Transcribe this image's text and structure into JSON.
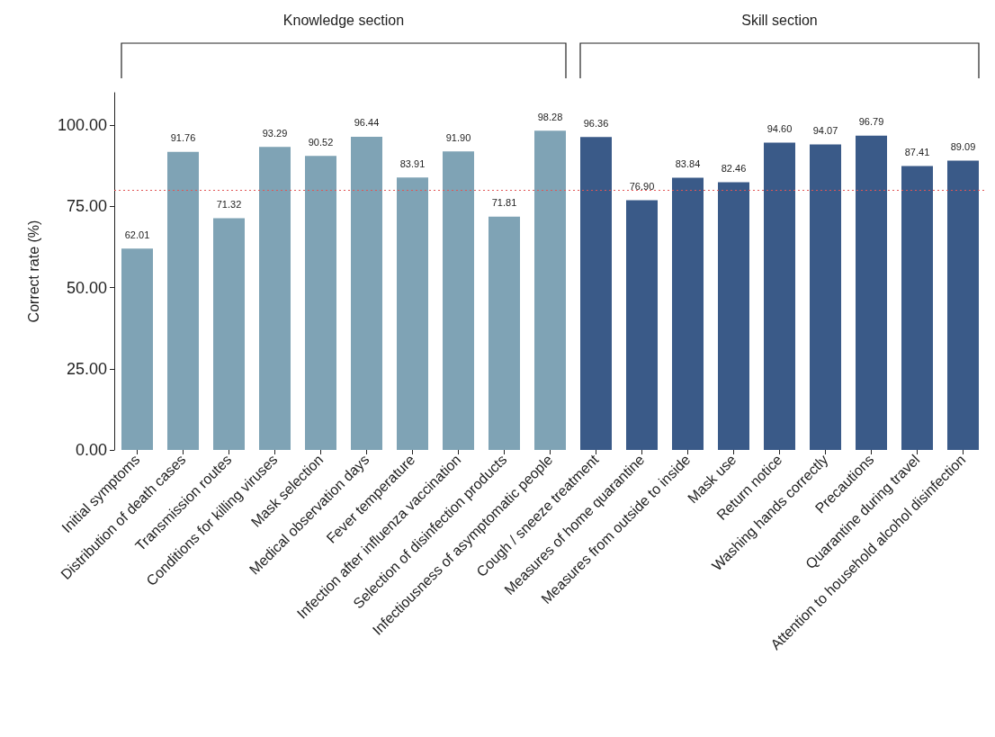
{
  "chart_data": {
    "type": "bar",
    "ylabel": "Correct rate (%)",
    "annotations": [
      "Knowledge section",
      "Skill section"
    ],
    "categories": [
      "Initial symptoms",
      "Distribution of death cases",
      "Transmission routes",
      "Conditions for killing viruses",
      "Mask selection",
      "Medical observation days",
      "Fever temperature",
      "Infection after influenza vaccination",
      "Selection of disinfection products",
      "Infectiousness of asymptomatic people",
      "Cough / sneeze treatment",
      "Measures of home quarantine",
      "Measures from outside to inside",
      "Mask use",
      "Return notice",
      "Washing hands correctly",
      "Precautions",
      "Quarantine during travel",
      "Attention to household alcohol disinfection"
    ],
    "series": [
      {
        "color": "#7fa3b5",
        "values": [
          62.01,
          91.76,
          71.32,
          93.29,
          90.52,
          96.44,
          83.91,
          91.9,
          71.81,
          98.28,
          null,
          null,
          null,
          null,
          null,
          null,
          null,
          null,
          null
        ],
        "value_labels": [
          "62.01",
          "91.76",
          "71.32",
          "93.29",
          "90.52",
          "96.44",
          "83.91",
          "91.90",
          "71.81",
          "98.28",
          null,
          null,
          null,
          null,
          null,
          null,
          null,
          null,
          null
        ]
      },
      {
        "color": "#3a5a88",
        "values": [
          null,
          null,
          null,
          null,
          null,
          null,
          null,
          null,
          null,
          null,
          96.36,
          76.9,
          83.84,
          82.46,
          94.6,
          94.07,
          96.79,
          87.41,
          89.09
        ],
        "value_labels": [
          null,
          null,
          null,
          null,
          null,
          null,
          null,
          null,
          null,
          null,
          "96.36",
          "76.90",
          "83.84",
          "82.46",
          "94.60",
          "94.07",
          "96.79",
          "87.41",
          "89.09"
        ]
      }
    ],
    "ylim": [
      0,
      110
    ],
    "yticks": [
      {
        "value": 0,
        "label": "0.00"
      },
      {
        "value": 25,
        "label": "25.00"
      },
      {
        "value": 50,
        "label": "50.00"
      },
      {
        "value": 75,
        "label": "75.00"
      },
      {
        "value": 100,
        "label": "100.00"
      }
    ],
    "ref_lines": [
      {
        "axis": "y",
        "value": 80,
        "color": "#e05555",
        "line_style": "dotted"
      }
    ],
    "grid": false
  }
}
